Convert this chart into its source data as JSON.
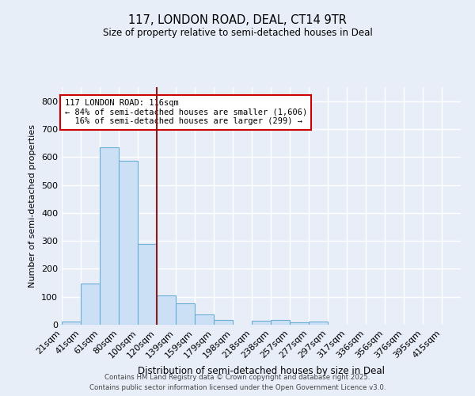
{
  "title1": "117, LONDON ROAD, DEAL, CT14 9TR",
  "title2": "Size of property relative to semi-detached houses in Deal",
  "xlabel": "Distribution of semi-detached houses by size in Deal",
  "ylabel": "Number of semi-detached properties",
  "bin_labels": [
    "21sqm",
    "41sqm",
    "61sqm",
    "80sqm",
    "100sqm",
    "120sqm",
    "139sqm",
    "159sqm",
    "179sqm",
    "198sqm",
    "218sqm",
    "238sqm",
    "257sqm",
    "277sqm",
    "297sqm",
    "317sqm",
    "336sqm",
    "356sqm",
    "376sqm",
    "395sqm",
    "415sqm"
  ],
  "bar_heights": [
    12,
    148,
    635,
    586,
    290,
    105,
    77,
    38,
    17,
    0,
    14,
    16,
    8,
    10,
    0,
    0,
    0,
    0,
    0,
    0,
    0
  ],
  "bar_color": "#cce0f5",
  "bar_edge_color": "#6aaed6",
  "vline_x_index": 5,
  "vline_color": "#8b1a1a",
  "annotation_text": "117 LONDON ROAD: 116sqm\n← 84% of semi-detached houses are smaller (1,606)\n  16% of semi-detached houses are larger (299) →",
  "annotation_box_color": "white",
  "annotation_box_edge": "#cc0000",
  "footer1": "Contains HM Land Registry data © Crown copyright and database right 2025.",
  "footer2": "Contains public sector information licensed under the Open Government Licence v3.0.",
  "ylim": [
    0,
    850
  ],
  "background_color": "#e8eef8",
  "plot_bg_color": "#e8eef8",
  "grid_color": "white",
  "yticks": [
    0,
    100,
    200,
    300,
    400,
    500,
    600,
    700,
    800
  ]
}
